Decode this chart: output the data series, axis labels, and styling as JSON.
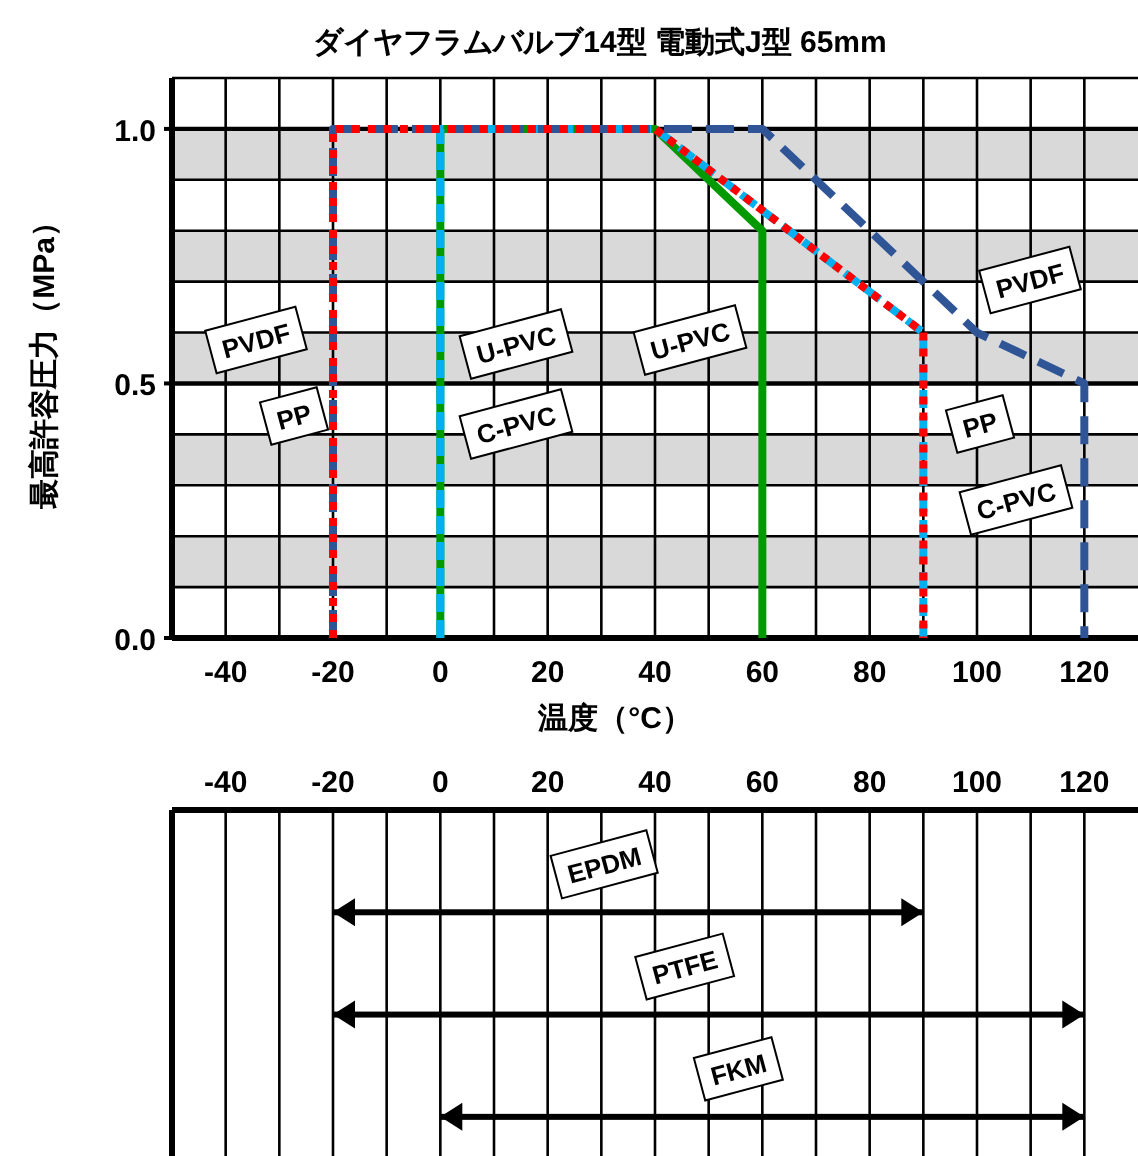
{
  "chart_data": [
    {
      "type": "line",
      "title": "ダイヤフラムバルブ14型 電動式J型 65mm",
      "xlabel": "温度（°C）",
      "ylabel": "最高許容圧力（MPa）",
      "xlim": [
        -50,
        130
      ],
      "ylim": [
        0,
        1.1
      ],
      "xticks": [
        -40,
        -20,
        0,
        20,
        40,
        60,
        80,
        100,
        120
      ],
      "yticks": [
        {
          "value": 0,
          "label": "0.0"
        },
        {
          "value": 0.5,
          "label": "0.5"
        },
        {
          "value": 1,
          "label": "1.0"
        }
      ],
      "grid": true,
      "bands": [
        {
          "axis": "y",
          "from": 0.9,
          "to": 1.0,
          "color": "#d9d9d9"
        },
        {
          "axis": "y",
          "from": 0.7,
          "to": 0.8,
          "color": "#d9d9d9"
        },
        {
          "axis": "y",
          "from": 0.5,
          "to": 0.6,
          "color": "#d9d9d9"
        },
        {
          "axis": "y",
          "from": 0.3,
          "to": 0.4,
          "color": "#d9d9d9"
        },
        {
          "axis": "y",
          "from": 0.1,
          "to": 0.2,
          "color": "#d9d9d9"
        }
      ],
      "series": [
        {
          "name": "U-PVC",
          "color": "#009900",
          "line_style": "solid",
          "x": [
            0,
            0,
            40,
            60,
            60
          ],
          "values": [
            0,
            1.0,
            1.0,
            0.8,
            0
          ]
        },
        {
          "name": "C-PVC",
          "color": "#00b0f0",
          "line_style": "dashed",
          "x": [
            0,
            0,
            40,
            90,
            90
          ],
          "values": [
            0,
            1.0,
            1.0,
            0.6,
            0
          ]
        },
        {
          "name": "PVDF",
          "color": "#2f5597",
          "line_style": "dashed",
          "x": [
            -20,
            -20,
            60,
            100,
            120,
            120
          ],
          "values": [
            0,
            1.0,
            1.0,
            0.6,
            0.5,
            0
          ]
        },
        {
          "name": "PP",
          "color": "#ff0000",
          "line_style": "dotted",
          "x": [
            -20,
            -20,
            40,
            90,
            90
          ],
          "values": [
            0,
            1.0,
            1.0,
            0.6,
            0
          ]
        }
      ]
    },
    {
      "type": "bar",
      "orientation": "horizontal",
      "categories": [
        "EPDM",
        "PTFE",
        "FKM"
      ],
      "base": [
        -20,
        -20,
        0
      ],
      "values": [
        110,
        140,
        120
      ],
      "color": "#000000",
      "xlim": [
        -50,
        130
      ],
      "xticks": [
        -40,
        -20,
        0,
        20,
        40,
        60,
        80,
        100,
        120
      ],
      "grid": "x"
    }
  ]
}
